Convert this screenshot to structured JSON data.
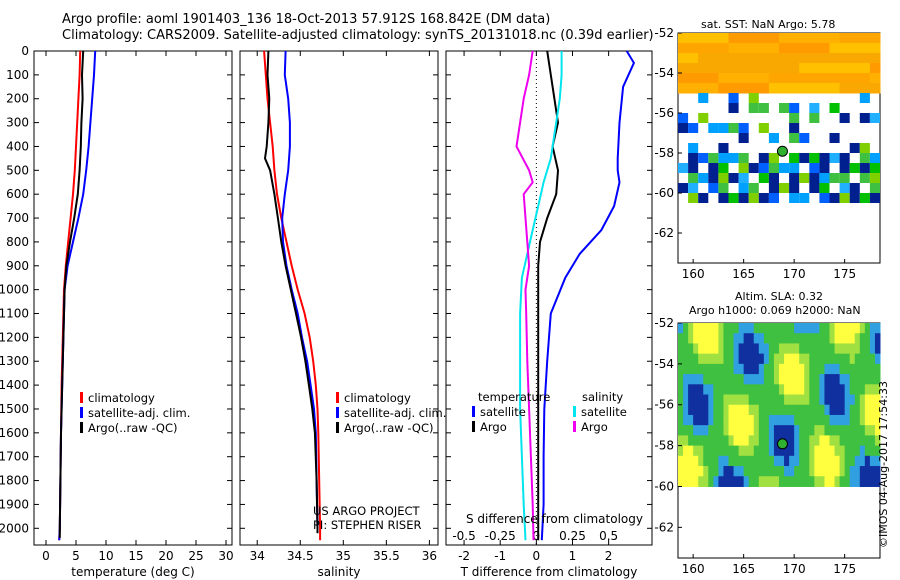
{
  "header": {
    "line1": "Argo profile: aoml 1901403_136 18-Oct-2013 57.912S 168.842E (DM data)",
    "line2": "Climatology: CARS2009. Satellite-adjusted climatology: synTS_20131018.nc (0.39d earlier)"
  },
  "colors": {
    "climatology": "#ff0000",
    "satellite": "#0000ff",
    "argo": "#000000",
    "cyan": "#00e5ee",
    "magenta": "#ee00ee"
  },
  "chart_data": [
    {
      "type": "line",
      "xlabel": "temperature (deg C)",
      "xticks": [
        "0",
        "5",
        "10",
        "15",
        "20",
        "25",
        "30"
      ],
      "xlim": [
        -2,
        31
      ],
      "ylim": [
        2070,
        0
      ],
      "yticks": [
        "0",
        "100",
        "200",
        "300",
        "400",
        "500",
        "600",
        "700",
        "800",
        "900",
        "1000",
        "1100",
        "1200",
        "1300",
        "1400",
        "1500",
        "1600",
        "1700",
        "1800",
        "1900",
        "2000"
      ],
      "legend": [
        "climatology",
        "satellite-adj. clim.",
        "Argo(..raw -QC)"
      ],
      "series": [
        {
          "name": "climatology",
          "color": "#ff0000",
          "points": [
            [
              5.7,
              0
            ],
            [
              5.6,
              100
            ],
            [
              5.4,
              200
            ],
            [
              5.2,
              300
            ],
            [
              5.0,
              400
            ],
            [
              4.8,
              500
            ],
            [
              4.5,
              600
            ],
            [
              4.1,
              700
            ],
            [
              3.7,
              800
            ],
            [
              3.3,
              900
            ],
            [
              3.0,
              1000
            ],
            [
              2.8,
              1200
            ],
            [
              2.6,
              1400
            ],
            [
              2.5,
              1600
            ],
            [
              2.4,
              1800
            ],
            [
              2.3,
              2000
            ],
            [
              2.2,
              2050
            ]
          ]
        },
        {
          "name": "satellite-adj. clim.",
          "color": "#0000ff",
          "points": [
            [
              8.2,
              0
            ],
            [
              8.0,
              100
            ],
            [
              7.7,
              200
            ],
            [
              7.4,
              300
            ],
            [
              7.1,
              400
            ],
            [
              6.7,
              500
            ],
            [
              6.2,
              600
            ],
            [
              5.4,
              700
            ],
            [
              4.5,
              800
            ],
            [
              3.6,
              900
            ],
            [
              3.1,
              1000
            ],
            [
              2.9,
              1200
            ],
            [
              2.7,
              1400
            ],
            [
              2.5,
              1600
            ],
            [
              2.4,
              1800
            ],
            [
              2.3,
              2000
            ],
            [
              2.2,
              2050
            ]
          ]
        },
        {
          "name": "Argo(..raw -QC)",
          "color": "#000000",
          "points": [
            [
              6.2,
              0
            ],
            [
              6.0,
              100
            ],
            [
              6.1,
              200
            ],
            [
              5.9,
              300
            ],
            [
              5.8,
              400
            ],
            [
              5.6,
              500
            ],
            [
              5.3,
              600
            ],
            [
              4.7,
              700
            ],
            [
              4.0,
              800
            ],
            [
              3.4,
              900
            ],
            [
              3.1,
              1000
            ],
            [
              2.9,
              1200
            ],
            [
              2.7,
              1400
            ],
            [
              2.5,
              1600
            ],
            [
              2.4,
              1800
            ],
            [
              2.3,
              2000
            ],
            [
              2.3,
              2040
            ]
          ]
        }
      ]
    },
    {
      "type": "line",
      "xlabel": "salinity",
      "xticks": [
        "34",
        "34.5",
        "35",
        "35.5",
        "36"
      ],
      "xlim": [
        33.8,
        36.1
      ],
      "ylim": [
        2070,
        0
      ],
      "legend": [
        "climatology",
        "satellite-adj. clim.",
        "Argo(..raw -QC)"
      ],
      "series": [
        {
          "name": "climatology",
          "color": "#ff0000",
          "points": [
            [
              34.08,
              0
            ],
            [
              34.1,
              100
            ],
            [
              34.12,
              200
            ],
            [
              34.15,
              300
            ],
            [
              34.18,
              400
            ],
            [
              34.2,
              500
            ],
            [
              34.23,
              600
            ],
            [
              34.28,
              700
            ],
            [
              34.34,
              800
            ],
            [
              34.4,
              900
            ],
            [
              34.47,
              1000
            ],
            [
              34.55,
              1100
            ],
            [
              34.61,
              1200
            ],
            [
              34.65,
              1300
            ],
            [
              34.68,
              1400
            ],
            [
              34.7,
              1500
            ],
            [
              34.71,
              1600
            ],
            [
              34.72,
              1800
            ],
            [
              34.73,
              2000
            ],
            [
              34.73,
              2050
            ]
          ]
        },
        {
          "name": "satellite-adj. clim.",
          "color": "#0000ff",
          "points": [
            [
              34.33,
              0
            ],
            [
              34.32,
              100
            ],
            [
              34.36,
              200
            ],
            [
              34.38,
              300
            ],
            [
              34.38,
              400
            ],
            [
              34.36,
              500
            ],
            [
              34.32,
              600
            ],
            [
              34.29,
              700
            ],
            [
              34.3,
              800
            ],
            [
              34.34,
              900
            ],
            [
              34.4,
              1000
            ],
            [
              34.47,
              1100
            ],
            [
              34.52,
              1200
            ],
            [
              34.58,
              1300
            ],
            [
              34.62,
              1400
            ],
            [
              34.66,
              1500
            ],
            [
              34.68,
              1600
            ],
            [
              34.69,
              1800
            ],
            [
              34.7,
              2000
            ],
            [
              34.7,
              2020
            ]
          ]
        },
        {
          "name": "Argo(..raw -QC)",
          "color": "#000000",
          "points": [
            [
              34.13,
              0
            ],
            [
              34.12,
              100
            ],
            [
              34.14,
              200
            ],
            [
              34.13,
              300
            ],
            [
              34.11,
              400
            ],
            [
              34.09,
              450
            ],
            [
              34.15,
              500
            ],
            [
              34.2,
              600
            ],
            [
              34.24,
              700
            ],
            [
              34.28,
              800
            ],
            [
              34.33,
              900
            ],
            [
              34.39,
              1000
            ],
            [
              34.45,
              1100
            ],
            [
              34.51,
              1200
            ],
            [
              34.56,
              1300
            ],
            [
              34.6,
              1400
            ],
            [
              34.64,
              1500
            ],
            [
              34.67,
              1600
            ],
            [
              34.69,
              1800
            ],
            [
              34.7,
              2000
            ],
            [
              34.7,
              2020
            ]
          ]
        }
      ]
    },
    {
      "type": "line",
      "xlabel": "T difference from climatology",
      "x2label": "S difference from climatology",
      "xticks": [
        "-2",
        "-1",
        "0",
        "1",
        "2"
      ],
      "x2ticks": [
        "-0.5",
        "-0.25",
        "0",
        "0.25",
        "0.5"
      ],
      "xlim": [
        -2.5,
        3.2
      ],
      "ylim": [
        2070,
        0
      ],
      "legend_groups": [
        {
          "title": "temperature",
          "items": [
            "satellite",
            "Argo"
          ]
        },
        {
          "title": "salinity",
          "items": [
            "satellite",
            "Argo"
          ]
        }
      ],
      "series": [
        {
          "name": "satellite",
          "group": "temperature",
          "color": "#0000ff",
          "points": [
            [
              2.5,
              0
            ],
            [
              2.7,
              50
            ],
            [
              2.4,
              150
            ],
            [
              2.3,
              300
            ],
            [
              2.25,
              450
            ],
            [
              2.25,
              500
            ],
            [
              2.3,
              550
            ],
            [
              2.15,
              650
            ],
            [
              1.8,
              750
            ],
            [
              1.2,
              850
            ],
            [
              0.8,
              950
            ],
            [
              0.4,
              1100
            ],
            [
              0.3,
              1300
            ],
            [
              0.22,
              1500
            ],
            [
              0.2,
              1700
            ],
            [
              0.2,
              1900
            ],
            [
              0.15,
              2050
            ]
          ]
        },
        {
          "name": "Argo",
          "group": "temperature",
          "color": "#000000",
          "points": [
            [
              0.3,
              0
            ],
            [
              0.4,
              100
            ],
            [
              0.5,
              200
            ],
            [
              0.6,
              300
            ],
            [
              0.45,
              400
            ],
            [
              0.6,
              500
            ],
            [
              0.55,
              600
            ],
            [
              0.3,
              700
            ],
            [
              0.1,
              800
            ],
            [
              0.05,
              900
            ],
            [
              0.05,
              1100
            ],
            [
              0.05,
              1300
            ],
            [
              0.05,
              1500
            ],
            [
              0.05,
              1700
            ],
            [
              0.05,
              1900
            ],
            [
              0.05,
              2050
            ]
          ]
        },
        {
          "name": "satellite",
          "group": "salinity",
          "color": "#00e5ee",
          "points": [
            [
              0.7,
              0
            ],
            [
              0.7,
              100
            ],
            [
              0.65,
              200
            ],
            [
              0.55,
              300
            ],
            [
              0.4,
              450
            ],
            [
              0.2,
              550
            ],
            [
              0.05,
              650
            ],
            [
              -0.1,
              750
            ],
            [
              -0.25,
              850
            ],
            [
              -0.4,
              950
            ],
            [
              -0.45,
              1100
            ],
            [
              -0.45,
              1300
            ],
            [
              -0.45,
              1500
            ],
            [
              -0.4,
              1700
            ],
            [
              -0.35,
              1900
            ],
            [
              -0.3,
              2050
            ]
          ]
        },
        {
          "name": "Argo",
          "group": "salinity",
          "color": "#ee00ee",
          "points": [
            [
              -0.1,
              0
            ],
            [
              -0.2,
              100
            ],
            [
              -0.35,
              200
            ],
            [
              -0.45,
              300
            ],
            [
              -0.55,
              400
            ],
            [
              -0.2,
              500
            ],
            [
              -0.1,
              550
            ],
            [
              -0.35,
              600
            ],
            [
              -0.3,
              700
            ],
            [
              -0.25,
              800
            ],
            [
              -0.2,
              900
            ],
            [
              -0.3,
              1000
            ],
            [
              -0.28,
              1100
            ],
            [
              -0.25,
              1300
            ],
            [
              -0.2,
              1500
            ],
            [
              -0.15,
              1700
            ],
            [
              -0.1,
              1900
            ],
            [
              -0.08,
              2050
            ]
          ]
        }
      ]
    },
    {
      "type": "heatmap",
      "title": "sat. SST: NaN Argo: 5.78",
      "xticks": [
        "160",
        "165",
        "170",
        "175"
      ],
      "yticks": [
        "-52",
        "-54",
        "-56",
        "-58",
        "-60",
        "-62"
      ],
      "xlim": [
        158.5,
        178.5
      ],
      "ylim": [
        -63.5,
        -52
      ],
      "marker": {
        "lon": 168.842,
        "lat": -57.912
      }
    },
    {
      "type": "heatmap",
      "title": "Altim. SLA: 0.32",
      "subtitle": "Argo h1000: 0.069 h2000: NaN",
      "xticks": [
        "160",
        "165",
        "170",
        "175"
      ],
      "yticks": [
        "-52",
        "-54",
        "-56",
        "-58",
        "-60",
        "-62"
      ],
      "xlim": [
        158.5,
        178.5
      ],
      "ylim": [
        -63.5,
        -52
      ],
      "marker": {
        "lon": 168.842,
        "lat": -57.912
      }
    }
  ],
  "footer": {
    "project": "US ARGO PROJECT",
    "pi": "PI: STEPHEN RISER",
    "stamp": "©IMOS 04-Aug-2017 17:54:33"
  }
}
